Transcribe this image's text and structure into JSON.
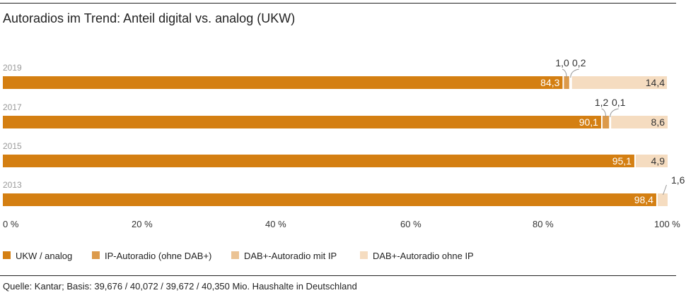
{
  "chart_data": {
    "type": "bar",
    "orientation": "horizontal",
    "stacked": true,
    "title": "Autoradios im Trend: Anteil digital vs. analog (UKW)",
    "categories": [
      "2019",
      "2017",
      "2015",
      "2013"
    ],
    "series": [
      {
        "name": "UKW / analog",
        "color": "#d47f12",
        "values": [
          84.3,
          90.1,
          95.1,
          98.4
        ],
        "labels": [
          "84,3",
          "90,1",
          "95,1",
          "98,4"
        ]
      },
      {
        "name": "IP-Autoradio (ohne DAB+)",
        "color": "#dc9a4b",
        "values": [
          1.0,
          1.2,
          0,
          0
        ],
        "labels": [
          "1,0",
          "1,2",
          "",
          ""
        ]
      },
      {
        "name": "DAB+-Autoradio mit IP",
        "color": "#ebc394",
        "values": [
          0.2,
          0.1,
          0,
          0
        ],
        "labels": [
          "0,2",
          "0,1",
          "",
          ""
        ]
      },
      {
        "name": "DAB+-Autoradio ohne IP",
        "color": "#f5dcc0",
        "values": [
          14.4,
          8.6,
          4.9,
          1.6
        ],
        "labels": [
          "14,4",
          "8,6",
          "4,9",
          "1,6"
        ]
      }
    ],
    "xlim": [
      0,
      100
    ],
    "xticks": [
      "0 %",
      "20 %",
      "40 %",
      "60 %",
      "80 %",
      "100 %"
    ],
    "legend_position": "bottom",
    "source": "Quelle: Kantar; Basis: 39,676 / 40,072 / 39,672 / 40,350 Mio. Haushalte in Deutschland"
  }
}
